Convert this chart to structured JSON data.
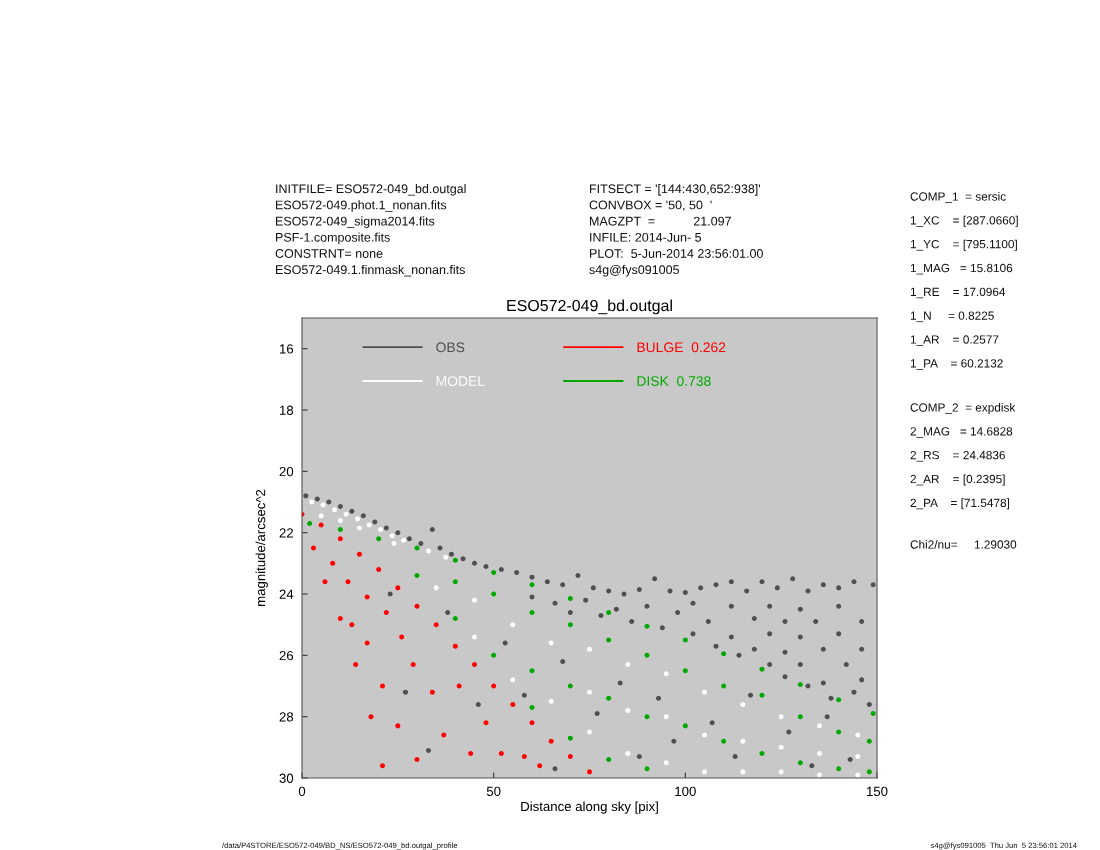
{
  "chart_data": {
    "type": "scatter",
    "title": "ESO572-049_bd.outgal",
    "xlabel": "Distance along sky [pix]",
    "ylabel": "magnitude/arcsec^2",
    "xlim": [
      0,
      150
    ],
    "ylim": [
      30,
      15
    ],
    "xticks": [
      0,
      50,
      100,
      150
    ],
    "yticks": [
      16,
      18,
      20,
      22,
      24,
      26,
      28,
      30
    ],
    "marker": "circle",
    "legend": "top left",
    "annotations": [
      "INITFILE= ESO572-049_bd.outgal\nESO572-049.phot.1_nonan.fits\nESO572-049_sigma2014.fits\nPSF-1.composite.fits\nCONSTRNT= none\nESO572-049.1.finmask_nonan.fits",
      "FITSECT = '[144:430,652:938]'\nCONVBOX = '50, 50  '\nMAGZPT  =           21.097\nINFILE: 2014-Jun- 5\nPLOT:  5-Jun-2014 23:56:01.00\ns4g@fys091005",
      "COMP_1  = sersic\n1_XC    = [287.0660]\n1_YC    = [795.1100]\n1_MAG   = 15.8106\n1_RE    = 17.0964\n1_N     = 0.8225\n1_AR    = 0.2577\n1_PA    = 60.2132",
      "COMP_2  = expdisk\n2_MAG   = 14.6828\n2_RS    = 24.4836\n2_AR    = [0.2395]\n2_PA    = [71.5478]",
      "Chi2/nu=     1.29030",
      "/data/P4STORE/ESO572-049/BD_NS/ESO572-049_bd.outgal_profile",
      "s4g@fys091005  Thu Jun  5 23:56:01 2014"
    ],
    "series": [
      {
        "name": "OBS",
        "color": "#505050",
        "x": [
          1,
          4,
          7,
          10,
          13,
          16,
          19,
          22,
          25,
          28,
          31,
          34,
          36,
          39,
          42,
          45,
          48,
          52,
          56,
          60,
          64,
          68,
          72,
          76,
          80,
          84,
          88,
          92,
          96,
          100,
          104,
          108,
          112,
          116,
          120,
          124,
          128,
          132,
          136,
          140,
          144,
          149,
          60,
          66,
          70,
          74,
          78,
          82,
          86,
          90,
          94,
          98,
          102,
          102,
          106,
          108,
          112,
          112,
          114,
          118,
          118,
          122,
          122,
          122,
          126,
          126,
          126,
          130,
          130,
          130,
          132,
          134,
          136,
          136,
          138,
          140,
          140,
          142,
          144,
          146,
          146,
          146,
          148,
          23,
          27,
          33,
          38,
          46,
          53,
          58,
          66,
          68,
          77,
          83,
          88,
          93,
          97,
          107,
          113,
          117,
          127,
          133,
          137,
          143
        ],
        "values": [
          20.8,
          20.9,
          21.0,
          21.15,
          21.3,
          21.45,
          21.65,
          21.85,
          22.0,
          22.2,
          22.35,
          21.9,
          22.5,
          22.7,
          22.85,
          23.0,
          23.1,
          23.2,
          23.3,
          23.45,
          23.6,
          23.7,
          23.4,
          23.8,
          23.9,
          24.0,
          23.85,
          23.5,
          23.9,
          23.95,
          23.8,
          23.7,
          23.6,
          23.9,
          23.6,
          23.8,
          23.5,
          23.9,
          23.7,
          23.8,
          23.6,
          23.7,
          24.1,
          24.3,
          24.6,
          24.2,
          24.7,
          24.5,
          24.9,
          24.4,
          25.1,
          24.6,
          24.3,
          25.3,
          24.9,
          25.7,
          24.4,
          25.4,
          26.0,
          24.8,
          25.8,
          24.4,
          25.3,
          26.3,
          24.9,
          25.9,
          26.7,
          24.5,
          25.4,
          26.3,
          27.0,
          24.9,
          25.8,
          26.9,
          27.4,
          24.4,
          25.3,
          26.3,
          27.2,
          24.9,
          25.8,
          26.8,
          27.6,
          24.0,
          27.2,
          29.1,
          24.6,
          27.6,
          25.6,
          27.3,
          29.7,
          26.2,
          27.9,
          26.9,
          29.3,
          27.4,
          28.8,
          28.2,
          29.3,
          27.3,
          28.5,
          29.6,
          28.0,
          29.4
        ]
      },
      {
        "name": "MODEL",
        "color": "#ffffff",
        "x": [
          2.5,
          5.5,
          8.5,
          11.5,
          14.5,
          17.5,
          20.5,
          23.5,
          26.5,
          33,
          37.5,
          5,
          10,
          15,
          24,
          35,
          45,
          45,
          55,
          55,
          65,
          65,
          75,
          75,
          75,
          85,
          85,
          85,
          95,
          95,
          95,
          105,
          105,
          105,
          115,
          115,
          115,
          125,
          125,
          125,
          135,
          135,
          135,
          145,
          145,
          145
        ],
        "values": [
          21.0,
          21.1,
          21.25,
          21.4,
          21.55,
          21.75,
          21.9,
          22.1,
          22.25,
          22.6,
          22.8,
          21.45,
          21.6,
          21.85,
          22.35,
          23.8,
          24.2,
          25.4,
          25.0,
          26.8,
          25.6,
          27.5,
          25.8,
          27.2,
          28.5,
          26.3,
          27.8,
          29.2,
          26.6,
          28.0,
          29.5,
          27.2,
          28.6,
          29.8,
          27.6,
          28.8,
          29.8,
          28.0,
          29.0,
          29.8,
          28.3,
          29.2,
          29.9,
          28.6,
          29.3,
          29.9
        ]
      },
      {
        "name": "BULGE  0.262",
        "color": "#ff0000",
        "x": [
          0,
          3,
          6,
          10,
          14,
          18,
          21,
          5,
          10,
          15,
          20,
          25,
          30,
          35,
          40,
          45,
          50,
          55,
          60,
          65,
          70,
          75,
          8,
          12,
          13,
          17,
          17,
          22,
          21,
          26,
          25,
          29,
          30,
          34,
          37,
          41,
          44,
          48,
          52,
          58,
          62
        ],
        "values": [
          21.4,
          22.5,
          23.6,
          24.8,
          26.3,
          28.0,
          29.6,
          21.75,
          22.2,
          22.7,
          23.2,
          23.8,
          24.4,
          25.0,
          25.7,
          26.3,
          27.0,
          27.6,
          28.2,
          28.8,
          29.3,
          29.8,
          23.0,
          23.6,
          25.0,
          24.1,
          25.6,
          24.6,
          27.0,
          25.4,
          28.3,
          26.3,
          29.4,
          27.2,
          28.6,
          27.0,
          29.2,
          28.2,
          29.2,
          29.3,
          29.6
        ]
      },
      {
        "name": "DISK  0.738",
        "color": "#00a800",
        "x": [
          2,
          10,
          20,
          30,
          40,
          50,
          60,
          70,
          80,
          90,
          100,
          110,
          120,
          130,
          140,
          149,
          30,
          40,
          40,
          50,
          50,
          60,
          60,
          60,
          70,
          70,
          70,
          80,
          80,
          80,
          90,
          90,
          90,
          100,
          100,
          110,
          110,
          120,
          120,
          130,
          130,
          140,
          140,
          148,
          148
        ],
        "values": [
          21.7,
          21.9,
          22.2,
          22.5,
          22.9,
          23.3,
          23.7,
          24.15,
          24.6,
          25.05,
          25.5,
          25.95,
          26.45,
          26.95,
          27.45,
          27.9,
          23.4,
          23.6,
          24.8,
          24.0,
          26.0,
          24.6,
          26.5,
          27.7,
          25.0,
          27.0,
          28.7,
          25.5,
          27.4,
          29.4,
          26.0,
          28.0,
          29.7,
          26.5,
          28.3,
          27.0,
          28.8,
          27.3,
          29.2,
          28.0,
          29.5,
          28.5,
          29.7,
          28.8,
          29.8
        ]
      }
    ]
  }
}
